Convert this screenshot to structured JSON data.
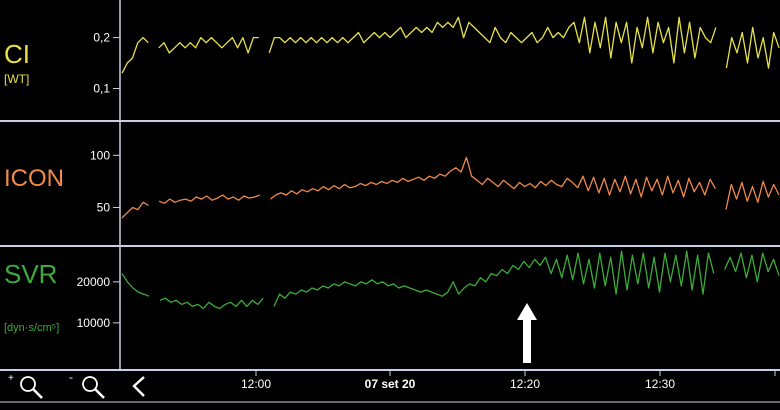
{
  "colors": {
    "ci": "#e6e14a",
    "icon": "#f0894a",
    "svr": "#3cab3a",
    "divider": "#c9cfe6",
    "axis_text": "#ffffff",
    "background": "#000000"
  },
  "panels": [
    {
      "key": "ci",
      "label": "CI",
      "unit": "[WT]",
      "ticks": [
        {
          "value": 0.2,
          "label": "0,2"
        },
        {
          "value": 0.1,
          "label": "0,1"
        }
      ],
      "ylim": [
        0.04,
        0.27
      ],
      "series": [
        0.13,
        0.15,
        0.16,
        0.19,
        0.2,
        0.19,
        null,
        0.18,
        0.19,
        0.17,
        0.18,
        0.19,
        0.18,
        0.19,
        0.18,
        0.2,
        0.19,
        0.2,
        0.19,
        0.18,
        0.19,
        0.2,
        0.18,
        0.2,
        0.17,
        0.2,
        0.2,
        null,
        0.17,
        0.2,
        0.2,
        0.19,
        0.2,
        0.19,
        0.2,
        0.19,
        0.2,
        0.19,
        0.2,
        0.19,
        0.2,
        0.19,
        0.2,
        0.19,
        0.2,
        0.21,
        0.19,
        0.2,
        0.21,
        0.2,
        0.21,
        0.2,
        0.21,
        0.22,
        0.2,
        0.21,
        0.22,
        0.21,
        0.22,
        0.21,
        0.23,
        0.22,
        0.23,
        0.22,
        0.24,
        0.2,
        0.23,
        0.22,
        0.21,
        0.2,
        0.19,
        0.22,
        0.2,
        0.19,
        0.21,
        0.2,
        0.19,
        0.2,
        0.21,
        0.19,
        0.2,
        0.22,
        0.2,
        0.21,
        0.2,
        0.22,
        0.23,
        0.19,
        0.24,
        0.17,
        0.23,
        0.18,
        0.24,
        0.16,
        0.23,
        0.19,
        0.23,
        0.15,
        0.22,
        0.18,
        0.24,
        0.17,
        0.23,
        0.19,
        0.22,
        0.15,
        0.24,
        0.17,
        0.23,
        0.16,
        0.22,
        0.2,
        0.19,
        0.22,
        null,
        0.14,
        0.2,
        0.17,
        0.21,
        0.15,
        0.22,
        0.16,
        0.2,
        0.14,
        0.21,
        0.18
      ]
    },
    {
      "key": "icon",
      "label": "ICON",
      "unit": "",
      "ticks": [
        {
          "value": 100,
          "label": "100"
        },
        {
          "value": 50,
          "label": "50"
        }
      ],
      "ylim": [
        15,
        130
      ],
      "series": [
        40,
        45,
        50,
        48,
        55,
        52,
        null,
        56,
        54,
        58,
        55,
        57,
        58,
        56,
        60,
        58,
        61,
        57,
        59,
        62,
        58,
        60,
        57,
        61,
        59,
        60,
        62,
        null,
        58,
        62,
        64,
        62,
        66,
        63,
        67,
        65,
        68,
        66,
        70,
        67,
        71,
        68,
        72,
        69,
        70,
        73,
        71,
        74,
        72,
        75,
        73,
        76,
        74,
        78,
        75,
        77,
        79,
        76,
        80,
        78,
        82,
        80,
        85,
        88,
        84,
        98,
        80,
        76,
        72,
        78,
        74,
        70,
        76,
        72,
        68,
        74,
        70,
        73,
        69,
        75,
        71,
        76,
        72,
        70,
        78,
        74,
        69,
        80,
        66,
        79,
        64,
        78,
        62,
        77,
        65,
        80,
        63,
        77,
        60,
        79,
        66,
        77,
        62,
        80,
        64,
        76,
        60,
        78,
        65,
        74,
        62,
        77,
        68,
        null,
        48,
        72,
        58,
        74,
        56,
        70,
        55,
        75,
        60,
        72,
        62
      ]
    },
    {
      "key": "svr",
      "label": "SVR",
      "unit": "[dyn·s/cm⁵]",
      "ticks": [
        {
          "value": 20000,
          "label": "20000"
        },
        {
          "value": 10000,
          "label": "10000"
        }
      ],
      "ylim": [
        -1000,
        28000
      ],
      "series": [
        22000,
        20000,
        18500,
        17500,
        17000,
        16500,
        null,
        15500,
        16000,
        15000,
        15500,
        14500,
        15000,
        14000,
        14500,
        13500,
        15000,
        14000,
        13500,
        14500,
        15000,
        14000,
        15500,
        14000,
        15500,
        14500,
        16000,
        null,
        14000,
        17000,
        16000,
        17500,
        17000,
        18000,
        17500,
        18500,
        18000,
        19000,
        18500,
        19500,
        19000,
        20000,
        19500,
        19000,
        20000,
        19500,
        20500,
        19500,
        20000,
        19000,
        19500,
        18500,
        19000,
        18500,
        18000,
        17500,
        18000,
        17500,
        17000,
        16500,
        17500,
        20000,
        17000,
        18500,
        19500,
        19000,
        21000,
        20000,
        22000,
        21500,
        23000,
        22000,
        24000,
        23000,
        25000,
        23500,
        25500,
        24000,
        26000,
        22000,
        25500,
        21000,
        26500,
        20500,
        27000,
        19500,
        25500,
        18500,
        27000,
        19000,
        26000,
        17000,
        27500,
        18000,
        26500,
        19500,
        27000,
        18500,
        26000,
        17500,
        27000,
        20000,
        26500,
        19000,
        27500,
        18000,
        26500,
        17000,
        27000,
        22000,
        null,
        23000,
        26000,
        22500,
        27000,
        21000,
        26500,
        20000,
        27000,
        22500,
        25500,
        21500
      ]
    }
  ],
  "toolbar": {
    "zoom_in": "+",
    "zoom_out": "-",
    "timeline": [
      {
        "key": "t1200",
        "label": "12:00",
        "bold": false
      },
      {
        "key": "date",
        "label": "07 set 20",
        "bold": true
      },
      {
        "key": "t1220",
        "label": "12:20",
        "bold": false
      },
      {
        "key": "t1230",
        "label": "12:30",
        "bold": false
      }
    ]
  }
}
